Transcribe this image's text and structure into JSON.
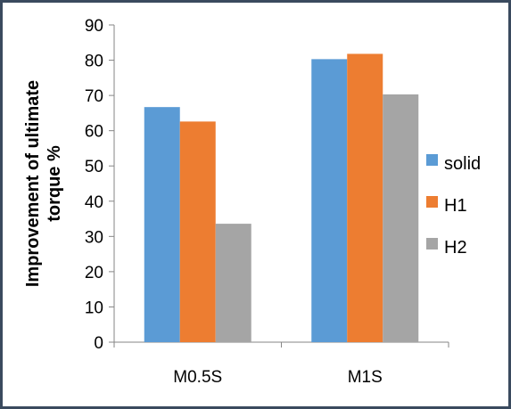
{
  "chart_data": {
    "type": "bar",
    "categories": [
      "M0.5S",
      "M1S"
    ],
    "series": [
      {
        "name": "solid",
        "values": [
          66.7,
          80.3
        ],
        "color": "#5b9bd5"
      },
      {
        "name": "H1",
        "values": [
          62.6,
          81.8
        ],
        "color": "#ed7d31"
      },
      {
        "name": "H2",
        "values": [
          33.6,
          70.3
        ],
        "color": "#a5a5a5"
      }
    ],
    "ylabel": "Improvement of ultimate torque %",
    "ylabel_lines": [
      "Improvement of ultimate",
      "torque %"
    ],
    "ylim": [
      0,
      90
    ],
    "yticks": [
      "0",
      "10",
      "20",
      "30",
      "40",
      "50",
      "60",
      "70",
      "80",
      "90"
    ],
    "grid": false,
    "legend": "right"
  }
}
